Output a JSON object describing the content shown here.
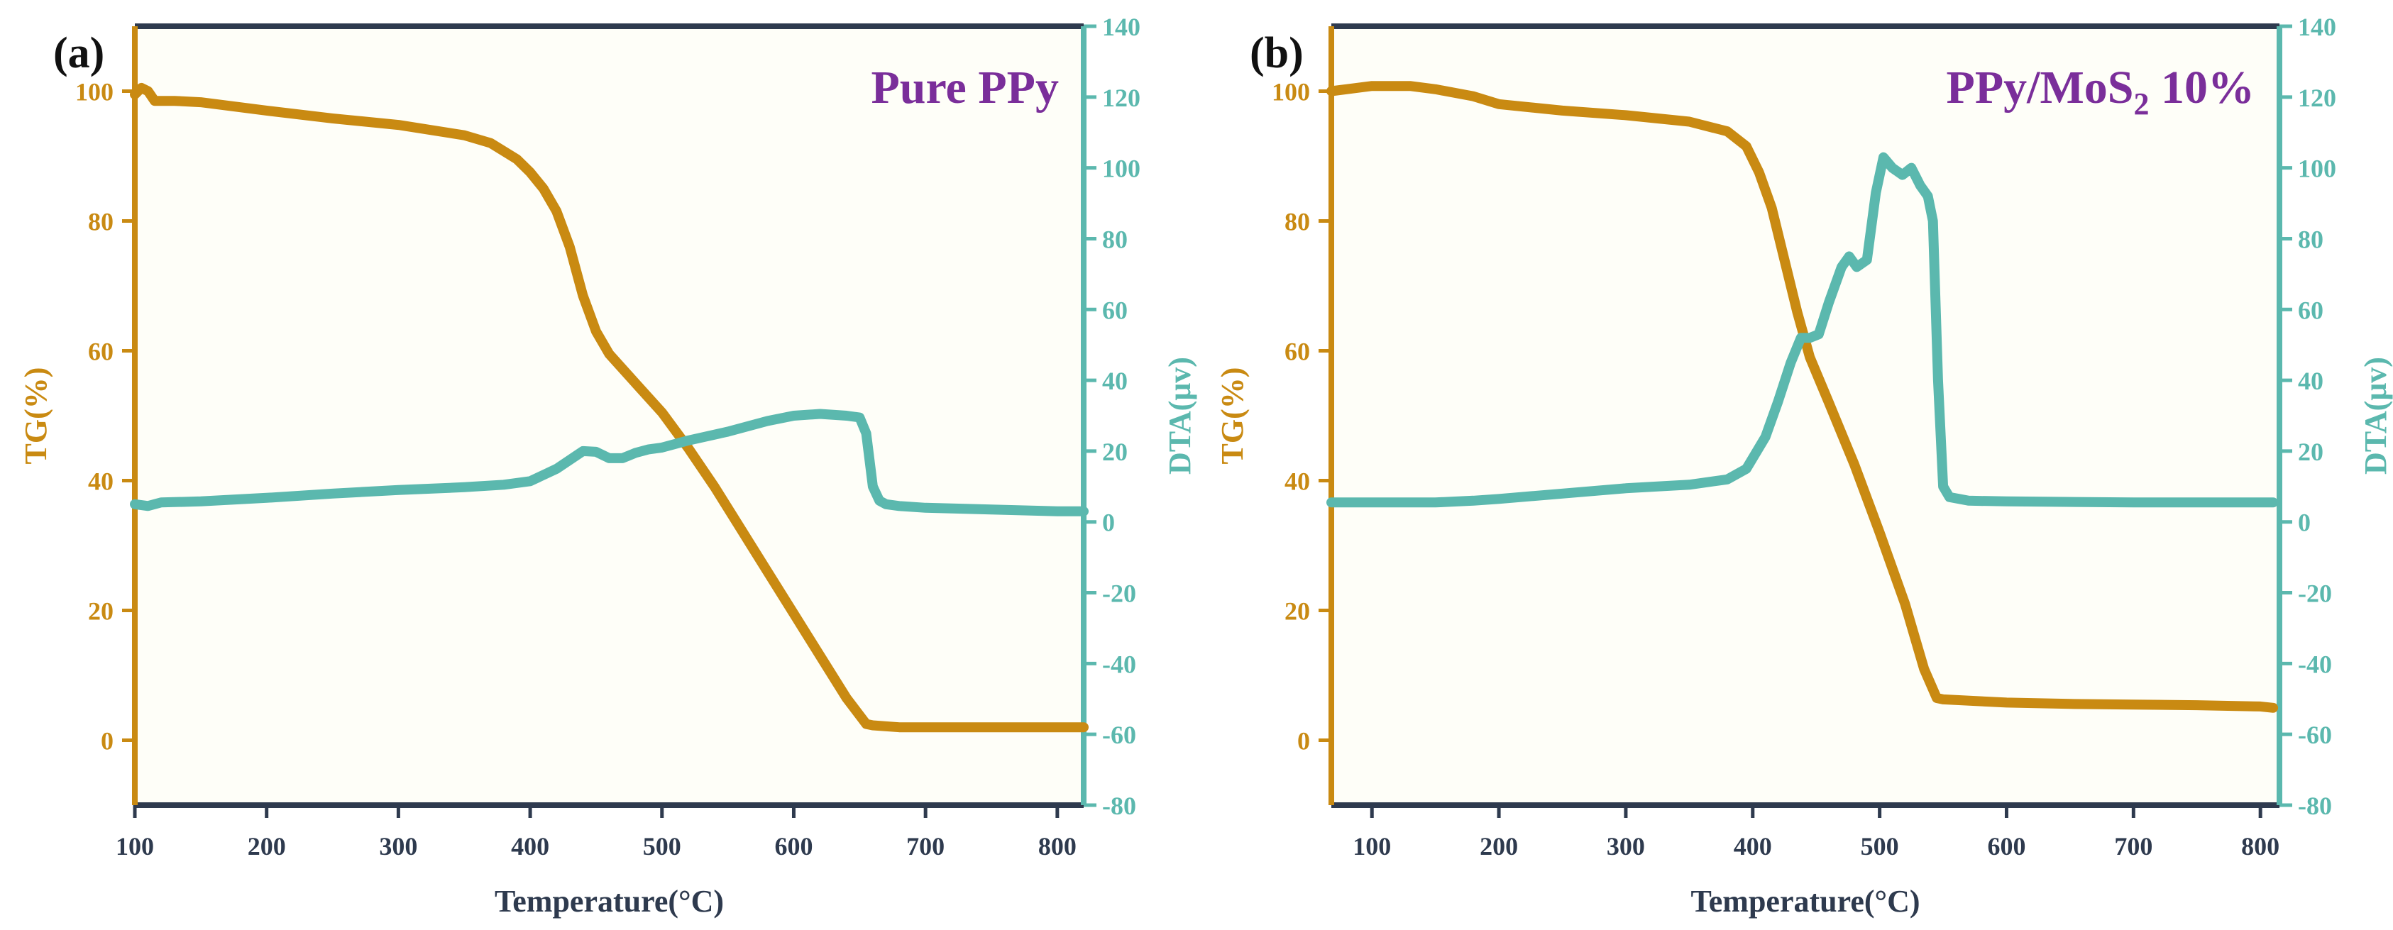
{
  "colors": {
    "tg": "#C98A12",
    "dta": "#5BB8AE",
    "axis_dark": "#2E3A4E",
    "title": "#7A2E9A",
    "panel_bg": "#FEFEF8"
  },
  "chart_data": [
    {
      "type": "line",
      "panel_label": "(a)",
      "title": "Pure PPy",
      "xlabel": "Temperature(°C)",
      "ylabel": "TG(%)",
      "y2label": "DTA(μv)",
      "xlim": [
        100,
        820
      ],
      "ylim": [
        -10,
        110
      ],
      "y2lim": [
        -80,
        140
      ],
      "xticks": [
        100,
        200,
        300,
        400,
        500,
        600,
        700,
        800
      ],
      "yticks": [
        0,
        20,
        40,
        60,
        80,
        100
      ],
      "y2ticks": [
        -80,
        -60,
        -40,
        -20,
        0,
        20,
        40,
        60,
        80,
        100,
        120,
        140
      ],
      "series": [
        {
          "name": "TG",
          "axis": "left",
          "x": [
            100,
            105,
            110,
            115,
            130,
            150,
            200,
            250,
            300,
            350,
            370,
            390,
            400,
            410,
            420,
            430,
            440,
            450,
            460,
            480,
            500,
            520,
            540,
            560,
            580,
            600,
            620,
            640,
            655,
            660,
            680,
            700,
            750,
            800,
            820
          ],
          "y": [
            99.5,
            100.5,
            100,
            98.5,
            98.5,
            98.3,
            97,
            95.8,
            94.8,
            93.2,
            92,
            89.5,
            87.5,
            85,
            81.5,
            76,
            68.5,
            63,
            59.5,
            55,
            50.5,
            45,
            39,
            32.5,
            26,
            19.5,
            13,
            6.5,
            2.5,
            2.3,
            2,
            2,
            2,
            2,
            2
          ]
        },
        {
          "name": "DTA",
          "axis": "right",
          "x": [
            100,
            110,
            120,
            150,
            200,
            250,
            300,
            350,
            380,
            400,
            420,
            440,
            450,
            460,
            470,
            480,
            490,
            500,
            520,
            550,
            580,
            600,
            620,
            640,
            650,
            655,
            660,
            665,
            670,
            680,
            700,
            750,
            800,
            820
          ],
          "y": [
            5,
            4.5,
            5.5,
            5.8,
            6.8,
            8,
            9,
            9.8,
            10.5,
            11.5,
            15,
            20,
            19.8,
            18,
            18,
            19.5,
            20.5,
            21,
            23,
            25.5,
            28.5,
            30,
            30.5,
            30,
            29.5,
            25,
            10,
            6,
            5,
            4.5,
            4,
            3.5,
            3,
            3
          ]
        }
      ]
    },
    {
      "type": "line",
      "panel_label": "(b)",
      "title_main": "PPy/MoS",
      "title_sub": "2",
      "title_tail": " 10%",
      "xlabel": "Temperature(°C)",
      "ylabel": "TG(%)",
      "y2label": "DTA(μv)",
      "xlim": [
        68,
        815
      ],
      "ylim": [
        -10,
        110
      ],
      "y2lim": [
        -80,
        140
      ],
      "xticks": [
        100,
        200,
        300,
        400,
        500,
        600,
        700,
        800
      ],
      "yticks": [
        0,
        20,
        40,
        60,
        80,
        100
      ],
      "y2ticks": [
        -80,
        -60,
        -40,
        -20,
        0,
        20,
        40,
        60,
        80,
        100,
        120,
        140
      ],
      "series": [
        {
          "name": "TG",
          "axis": "left",
          "x": [
            68,
            100,
            130,
            150,
            180,
            200,
            250,
            300,
            350,
            380,
            395,
            405,
            415,
            425,
            435,
            445,
            460,
            480,
            500,
            520,
            535,
            545,
            550,
            600,
            650,
            700,
            750,
            800,
            810
          ],
          "y": [
            100,
            100.8,
            100.8,
            100.3,
            99.2,
            98,
            97,
            96.3,
            95.3,
            93.8,
            91.5,
            87.5,
            82,
            74,
            66,
            59,
            52,
            42.5,
            32,
            21,
            11,
            6.5,
            6.3,
            5.8,
            5.6,
            5.5,
            5.4,
            5.2,
            5
          ]
        },
        {
          "name": "DTA",
          "axis": "right",
          "x": [
            68,
            100,
            150,
            180,
            200,
            250,
            300,
            350,
            380,
            395,
            410,
            420,
            430,
            438,
            445,
            452,
            460,
            470,
            476,
            482,
            490,
            497,
            503,
            510,
            518,
            525,
            532,
            538,
            542,
            546,
            550,
            555,
            570,
            600,
            700,
            810
          ],
          "y": [
            5.5,
            5.5,
            5.5,
            6,
            6.5,
            8,
            9.5,
            10.5,
            12,
            15,
            24,
            34,
            45,
            52,
            52,
            53,
            62,
            72,
            75,
            72,
            74,
            93,
            103,
            100,
            98,
            100,
            95,
            92,
            85,
            40,
            10,
            7,
            6,
            5.8,
            5.5,
            5.5
          ]
        }
      ]
    }
  ]
}
